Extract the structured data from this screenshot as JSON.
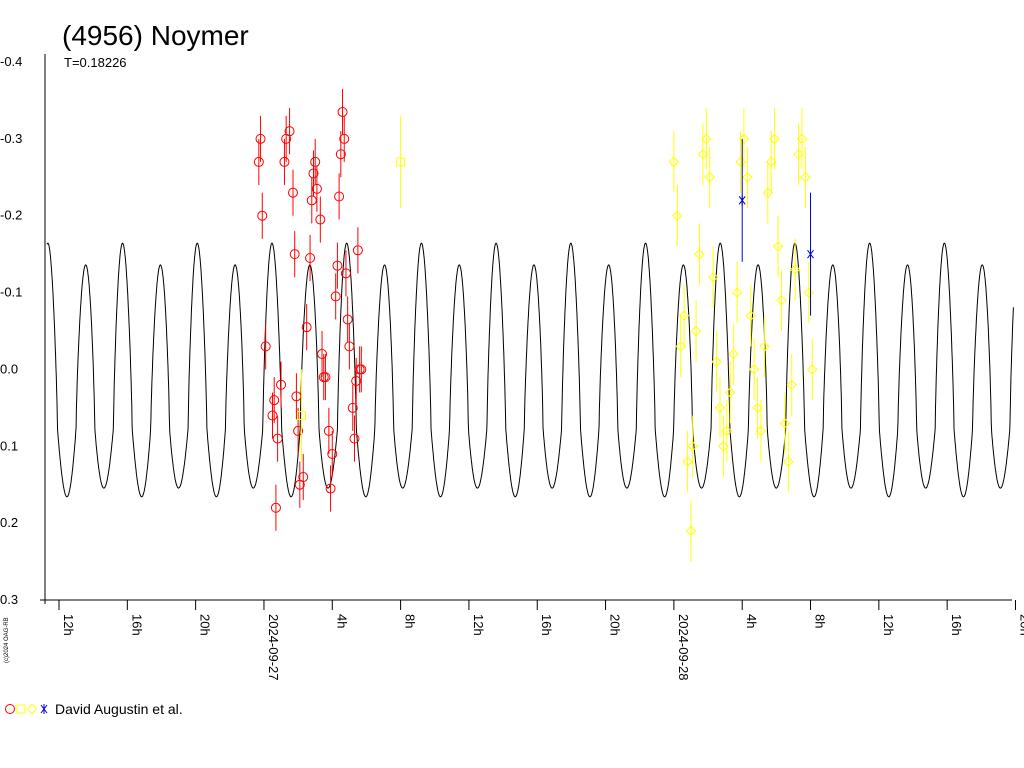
{
  "chart_data": {
    "type": "scatter",
    "title": "(4956) Noymer",
    "subtitle": "T=0.18226",
    "copyright": "(c)2024 OAG-RB",
    "y_inverted": true,
    "ylim": [
      -0.4,
      0.3
    ],
    "y_ticks": [
      "-0.4",
      "-0.3",
      "-0.2",
      "-0.1",
      "0.0",
      "0.1",
      "0.2",
      "0.3"
    ],
    "x_range_hours": [
      10.5,
      68.0
    ],
    "x_ticks": [
      {
        "h": 12,
        "label": "12h"
      },
      {
        "h": 16,
        "label": "16h"
      },
      {
        "h": 20,
        "label": "20h"
      },
      {
        "h": 24,
        "label": "2024-09-27"
      },
      {
        "h": 28,
        "label": "4h"
      },
      {
        "h": 32,
        "label": "8h"
      },
      {
        "h": 36,
        "label": "12h"
      },
      {
        "h": 40,
        "label": "16h"
      },
      {
        "h": 44,
        "label": "20h"
      },
      {
        "h": 48,
        "label": "2024-09-28"
      },
      {
        "h": 52,
        "label": "4h"
      },
      {
        "h": 56,
        "label": "8h"
      },
      {
        "h": 60,
        "label": "12h"
      },
      {
        "h": 64,
        "label": "16h"
      },
      {
        "h": 68,
        "label": "20h"
      }
    ],
    "period_hours": 4.3742,
    "model_peaks": [
      -0.32,
      -0.28
    ],
    "model_minima": [
      0.165,
      0.145
    ],
    "series": [
      {
        "name": "David Augustin et al.",
        "marker": "circle",
        "color": "#ff0000",
        "x": [
          23.7,
          23.8,
          23.9,
          24.1,
          24.5,
          24.6,
          24.7,
          24.8,
          25.0,
          25.2,
          25.3,
          25.5,
          25.7,
          25.8,
          25.9,
          26.0,
          26.1,
          26.3,
          26.5,
          26.7,
          26.8,
          26.9,
          27.0,
          27.1,
          27.3,
          27.4,
          27.5,
          27.6,
          27.8,
          27.9,
          28.0,
          28.2,
          28.3,
          28.4,
          28.5,
          28.6,
          28.7,
          28.8,
          28.9,
          29.0,
          29.2,
          29.3,
          29.4,
          29.5,
          29.6,
          29.7,
          29.8,
          30.0,
          30.1,
          30.3,
          30.4,
          30.5,
          30.7,
          30.9
        ],
        "y": [
          -0.27,
          -0.3,
          -0.2,
          -0.03,
          0.06,
          0.04,
          0.18,
          0.09,
          0.02,
          -0.27,
          -0.3,
          -0.31,
          -0.23,
          -0.15,
          0.035,
          0.08,
          0.15,
          0.14,
          -0.055,
          -0.145,
          -0.22,
          -0.255,
          -0.27,
          -0.235,
          -0.195,
          -0.02,
          0.01,
          0.01,
          0.08,
          0.155,
          0.11,
          -0.095,
          -0.135,
          -0.225,
          -0.28,
          -0.335,
          -0.3,
          -0.125,
          -0.065,
          -0.03,
          0.05,
          0.09,
          0.015,
          -0.155,
          0.0,
          0.0,
          0.0,
          0.0,
          0.0,
          0.0,
          0.0,
          0.0,
          0.0,
          0.0
        ],
        "error": 0.03
      },
      {
        "name": "David Augustin et al.",
        "marker": "square",
        "color": "#ffff00",
        "x": [
          26.2,
          32.0
        ],
        "y": [
          0.06,
          -0.27
        ],
        "error": 0.06
      },
      {
        "name": "David Augustin et al.",
        "marker": "diamond",
        "color": "#ffff00",
        "x": [
          48.0,
          48.2,
          48.4,
          48.6,
          48.8,
          49.0,
          49.1,
          49.3,
          49.5,
          49.7,
          49.9,
          50.1,
          50.3,
          50.5,
          50.7,
          50.9,
          51.1,
          51.3,
          51.5,
          51.7,
          51.9,
          52.1,
          52.3,
          52.5,
          52.7,
          52.9,
          53.1,
          53.3,
          53.5,
          53.7,
          53.9,
          54.1,
          54.3,
          54.5,
          54.7,
          54.9,
          55.1,
          55.3,
          55.5,
          55.7,
          55.9,
          56.1
        ],
        "y": [
          -0.27,
          -0.2,
          -0.03,
          -0.07,
          0.12,
          0.21,
          0.1,
          -0.05,
          -0.15,
          -0.28,
          -0.3,
          -0.25,
          -0.12,
          -0.01,
          0.05,
          0.1,
          0.08,
          0.03,
          -0.02,
          -0.1,
          -0.27,
          -0.3,
          -0.25,
          -0.07,
          0.0,
          0.05,
          0.08,
          -0.03,
          -0.23,
          -0.27,
          -0.3,
          -0.16,
          -0.09,
          0.07,
          0.12,
          0.02,
          -0.13,
          -0.28,
          -0.3,
          -0.25,
          -0.1,
          0.0
        ],
        "error": 0.04
      },
      {
        "name": "David Augustin et al.",
        "marker": "star",
        "color": "#0000cc",
        "x": [
          52.0,
          56.0
        ],
        "y": [
          -0.22,
          -0.15
        ],
        "error": 0.08
      }
    ],
    "legend": {
      "position": "bottom-left",
      "text": "David Augustin et al."
    }
  }
}
